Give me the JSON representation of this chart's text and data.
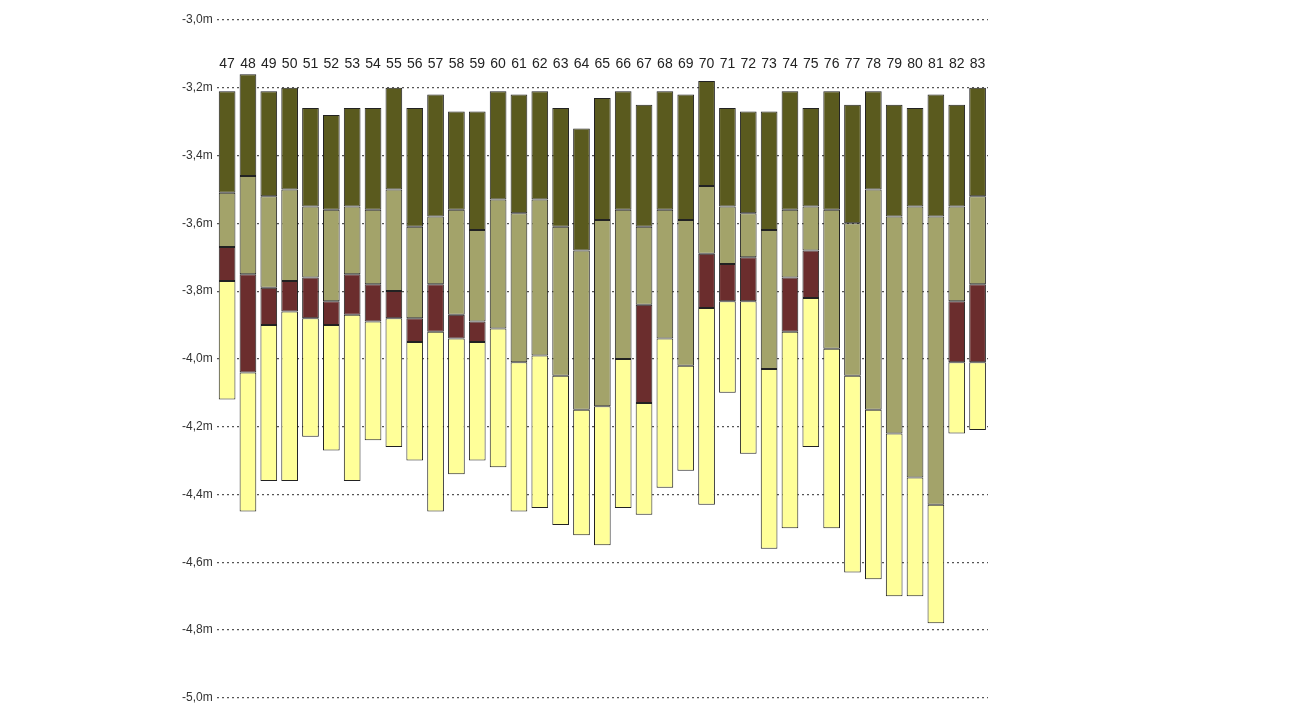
{
  "chart_data": {
    "type": "bar",
    "grid": "y",
    "legend": false,
    "categories": [
      "47",
      "48",
      "49",
      "50",
      "51",
      "52",
      "53",
      "54",
      "55",
      "56",
      "57",
      "58",
      "59",
      "60",
      "61",
      "62",
      "63",
      "64",
      "65",
      "66",
      "67",
      "68",
      "69",
      "70",
      "71",
      "72",
      "73",
      "74",
      "75",
      "76",
      "77",
      "78",
      "79",
      "80",
      "81",
      "82",
      "83"
    ],
    "series": [
      {
        "color": "#5a5a1e",
        "base": [
          -3.21,
          -3.16,
          -3.21,
          -3.2,
          -3.26,
          -3.28,
          -3.26,
          -3.26,
          -3.2,
          -3.26,
          -3.22,
          -3.27,
          -3.27,
          -3.21,
          -3.22,
          -3.21,
          -3.26,
          -3.32,
          -3.23,
          -3.21,
          -3.25,
          -3.21,
          -3.22,
          -3.18,
          -3.26,
          -3.27,
          -3.27,
          -3.21,
          -3.26,
          -3.21,
          -3.25,
          -3.21,
          -3.25,
          -3.26,
          -3.22,
          -3.25,
          -3.2
        ],
        "values": [
          -0.3,
          -0.3,
          -0.31,
          -0.3,
          -0.29,
          -0.28,
          -0.29,
          -0.3,
          -0.3,
          -0.35,
          -0.36,
          -0.29,
          -0.35,
          -0.32,
          -0.35,
          -0.32,
          -0.35,
          -0.36,
          -0.36,
          -0.35,
          -0.36,
          -0.35,
          -0.37,
          -0.31,
          -0.29,
          -0.3,
          -0.35,
          -0.35,
          -0.29,
          -0.35,
          -0.35,
          -0.29,
          -0.33,
          -0.29,
          -0.36,
          -0.3,
          -0.32
        ]
      },
      {
        "color": "#a3a36a",
        "base": [
          -3.51,
          -3.46,
          -3.52,
          -3.5,
          -3.55,
          -3.56,
          -3.55,
          -3.56,
          -3.5,
          -3.61,
          -3.58,
          -3.56,
          -3.62,
          -3.53,
          -3.57,
          -3.53,
          -3.61,
          -3.68,
          -3.59,
          -3.56,
          -3.61,
          -3.56,
          -3.59,
          -3.49,
          -3.55,
          -3.57,
          -3.62,
          -3.56,
          -3.55,
          -3.56,
          -3.6,
          -3.5,
          -3.58,
          -3.55,
          -3.58,
          -3.55,
          -3.52
        ],
        "values": [
          -0.16,
          -0.29,
          -0.27,
          -0.27,
          -0.21,
          -0.27,
          -0.2,
          -0.22,
          -0.3,
          -0.27,
          -0.2,
          -0.31,
          -0.27,
          -0.38,
          -0.44,
          -0.46,
          -0.44,
          -0.47,
          -0.55,
          -0.44,
          -0.23,
          -0.38,
          -0.43,
          -0.2,
          -0.17,
          -0.13,
          -0.41,
          -0.2,
          -0.13,
          -0.41,
          -0.45,
          -0.65,
          -0.64,
          -0.8,
          -0.85,
          -0.28,
          -0.26
        ]
      },
      {
        "color": "#6b2d2d",
        "base": [
          -3.67,
          -3.75,
          -3.79,
          -3.77,
          -3.76,
          -3.83,
          -3.75,
          -3.78,
          -3.8,
          -3.88,
          -3.78,
          -3.87,
          -3.89,
          null,
          null,
          null,
          null,
          null,
          null,
          null,
          -3.84,
          null,
          null,
          -3.69,
          -3.72,
          -3.7,
          null,
          -3.76,
          -3.68,
          null,
          null,
          null,
          null,
          null,
          null,
          -3.83,
          -3.78
        ],
        "values": [
          -0.1,
          -0.29,
          -0.11,
          -0.09,
          -0.12,
          -0.07,
          -0.12,
          -0.11,
          -0.08,
          -0.07,
          -0.14,
          -0.07,
          -0.06,
          null,
          null,
          null,
          null,
          null,
          null,
          null,
          -0.29,
          null,
          null,
          -0.16,
          -0.11,
          -0.13,
          null,
          -0.16,
          -0.14,
          null,
          null,
          null,
          null,
          null,
          null,
          -0.18,
          -0.23
        ]
      },
      {
        "color": "#ffff99",
        "base": [
          -3.77,
          -4.04,
          -3.9,
          -3.86,
          -3.88,
          -3.9,
          -3.87,
          -3.89,
          -3.88,
          -3.95,
          -3.92,
          -3.94,
          -3.95,
          -3.91,
          -4.01,
          -3.99,
          -4.05,
          -4.15,
          -4.14,
          -4,
          -4.13,
          -3.94,
          -4.02,
          -3.85,
          -3.83,
          -3.83,
          -4.03,
          -3.92,
          -3.82,
          -3.97,
          -4.05,
          -4.15,
          -4.22,
          -4.35,
          -4.43,
          -4.01,
          -4.01
        ],
        "values": [
          -0.35,
          -0.41,
          -0.46,
          -0.5,
          -0.35,
          -0.37,
          -0.49,
          -0.35,
          -0.38,
          -0.35,
          -0.53,
          -0.4,
          -0.35,
          -0.41,
          -0.44,
          -0.45,
          -0.44,
          -0.37,
          -0.41,
          -0.44,
          -0.33,
          -0.44,
          -0.31,
          -0.58,
          -0.27,
          -0.45,
          -0.53,
          -0.58,
          -0.44,
          -0.53,
          -0.58,
          -0.5,
          -0.48,
          -0.35,
          -0.35,
          -0.21,
          -0.2
        ]
      }
    ],
    "ylim": [
      -5,
      -3
    ],
    "yticks": [
      {
        "value": -3,
        "label": "-3,0m"
      },
      {
        "value": -3.2,
        "label": "-3,2m"
      },
      {
        "value": -3.4,
        "label": "-3,4m"
      },
      {
        "value": -3.6,
        "label": "-3,6m"
      },
      {
        "value": -3.8,
        "label": "-3,8m"
      },
      {
        "value": -4,
        "label": "-4,0m"
      },
      {
        "value": -4.2,
        "label": "-4,2m"
      },
      {
        "value": -4.4,
        "label": "-4,4m"
      },
      {
        "value": -4.6,
        "label": "-4,6m"
      },
      {
        "value": -4.8,
        "label": "-4,8m"
      },
      {
        "value": -5,
        "label": "-5,0m"
      }
    ]
  }
}
